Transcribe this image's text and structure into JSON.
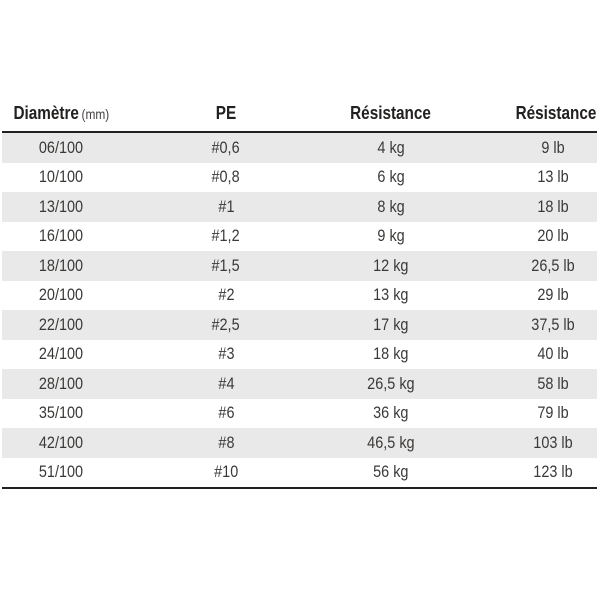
{
  "chart_data": {
    "type": "table",
    "columns": [
      "Diamètre (mm)",
      "PE",
      "Résistance",
      "Résistance"
    ],
    "rows": [
      [
        "06/100",
        "#0,6",
        "4 kg",
        "9 lb"
      ],
      [
        "10/100",
        "#0,8",
        "6 kg",
        "13 lb"
      ],
      [
        "13/100",
        "#1",
        "8 kg",
        "18 lb"
      ],
      [
        "16/100",
        "#1,2",
        "9 kg",
        "20 lb"
      ],
      [
        "18/100",
        "#1,5",
        "12 kg",
        "26,5 lb"
      ],
      [
        "20/100",
        "#2",
        "13 kg",
        "29 lb"
      ],
      [
        "22/100",
        "#2,5",
        "17 kg",
        "37,5 lb"
      ],
      [
        "24/100",
        "#3",
        "18 kg",
        "40 lb"
      ],
      [
        "28/100",
        "#4",
        "26,5 kg",
        "58 lb"
      ],
      [
        "35/100",
        "#6",
        "36 kg",
        "79 lb"
      ],
      [
        "42/100",
        "#8",
        "46,5 kg",
        "103 lb"
      ],
      [
        "51/100",
        "#10",
        "56 kg",
        "123 lb"
      ]
    ]
  },
  "table": {
    "columns": [
      {
        "label": "Diamètre",
        "sublabel": "(mm)"
      },
      {
        "label": "PE",
        "sublabel": ""
      },
      {
        "label": "Résistance",
        "sublabel": ""
      },
      {
        "label": "Résistance",
        "sublabel": ""
      }
    ],
    "rows": [
      [
        "06/100",
        "#0,6",
        "4 kg",
        "9 lb"
      ],
      [
        "10/100",
        "#0,8",
        "6 kg",
        "13 lb"
      ],
      [
        "13/100",
        "#1",
        "8 kg",
        "18 lb"
      ],
      [
        "16/100",
        "#1,2",
        "9 kg",
        "20 lb"
      ],
      [
        "18/100",
        "#1,5",
        "12 kg",
        "26,5 lb"
      ],
      [
        "20/100",
        "#2",
        "13 kg",
        "29 lb"
      ],
      [
        "22/100",
        "#2,5",
        "17 kg",
        "37,5 lb"
      ],
      [
        "24/100",
        "#3",
        "18 kg",
        "40 lb"
      ],
      [
        "28/100",
        "#4",
        "26,5 kg",
        "58 lb"
      ],
      [
        "35/100",
        "#6",
        "36 kg",
        "79 lb"
      ],
      [
        "42/100",
        "#8",
        "46,5 kg",
        "103 lb"
      ],
      [
        "51/100",
        "#10",
        "56 kg",
        "123 lb"
      ]
    ],
    "colors": {
      "stripe": "#e9e9e9",
      "text": "#3b3937",
      "header_text": "#232120",
      "border": "#232120",
      "background": "#ffffff"
    }
  }
}
